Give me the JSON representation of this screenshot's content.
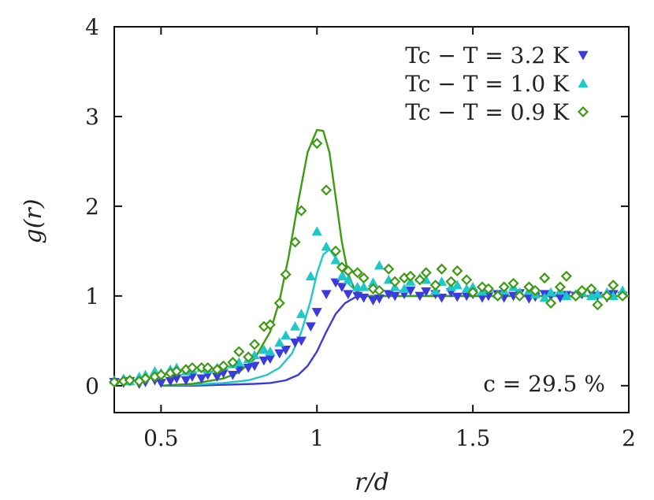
{
  "chart_data": {
    "type": "scatter",
    "xlabel": "r/d",
    "ylabel": "g(r)",
    "xlim": [
      0.35,
      2.0
    ],
    "ylim": [
      -0.3,
      4.0
    ],
    "xticks": [
      0.5,
      1,
      1.5,
      2
    ],
    "xtick_labels": [
      "0.5",
      "1",
      "1.5",
      "2"
    ],
    "yticks": [
      0,
      1,
      2,
      3,
      4
    ],
    "ytick_labels": [
      "0",
      "1",
      "2",
      "3",
      "4"
    ],
    "grid": false,
    "legend_position": "top-right",
    "annotation": "c = 29.5 %",
    "series": [
      {
        "name": "Tc − T = 3.2 K",
        "color": "#3a3adf",
        "marker": "triangle-down",
        "points": [
          [
            0.35,
            0.04
          ],
          [
            0.38,
            0.03
          ],
          [
            0.4,
            0.05
          ],
          [
            0.43,
            0.02
          ],
          [
            0.45,
            0.04
          ],
          [
            0.48,
            0.06
          ],
          [
            0.5,
            0.03
          ],
          [
            0.53,
            0.05
          ],
          [
            0.55,
            0.08
          ],
          [
            0.58,
            0.06
          ],
          [
            0.6,
            0.1
          ],
          [
            0.63,
            0.08
          ],
          [
            0.65,
            0.12
          ],
          [
            0.68,
            0.1
          ],
          [
            0.7,
            0.14
          ],
          [
            0.73,
            0.12
          ],
          [
            0.75,
            0.18
          ],
          [
            0.78,
            0.2
          ],
          [
            0.8,
            0.22
          ],
          [
            0.83,
            0.28
          ],
          [
            0.85,
            0.3
          ],
          [
            0.88,
            0.36
          ],
          [
            0.9,
            0.4
          ],
          [
            0.93,
            0.48
          ],
          [
            0.95,
            0.5
          ],
          [
            0.98,
            0.66
          ],
          [
            1.0,
            0.82
          ],
          [
            1.03,
            1.02
          ],
          [
            1.06,
            1.15
          ],
          [
            1.08,
            1.1
          ],
          [
            1.1,
            1.02
          ],
          [
            1.13,
            1.0
          ],
          [
            1.15,
            0.98
          ],
          [
            1.18,
            0.95
          ],
          [
            1.2,
            0.97
          ],
          [
            1.23,
            1.02
          ],
          [
            1.25,
            1.0
          ],
          [
            1.28,
            1.02
          ],
          [
            1.3,
            1.06
          ],
          [
            1.33,
            1.0
          ],
          [
            1.35,
            1.05
          ],
          [
            1.38,
            1.02
          ],
          [
            1.4,
            0.98
          ],
          [
            1.43,
            1.04
          ],
          [
            1.45,
            0.99
          ],
          [
            1.48,
            1.0
          ],
          [
            1.5,
            1.02
          ],
          [
            1.53,
            0.98
          ],
          [
            1.55,
            1.0
          ],
          [
            1.58,
            1.02
          ],
          [
            1.6,
            0.98
          ],
          [
            1.63,
            1.0
          ],
          [
            1.65,
            1.03
          ],
          [
            1.68,
            0.97
          ],
          [
            1.7,
            0.99
          ],
          [
            1.73,
            1.02
          ],
          [
            1.75,
            1.0
          ],
          [
            1.78,
            0.98
          ],
          [
            1.8,
            1.01
          ],
          [
            1.83,
            1.0
          ],
          [
            1.85,
            1.02
          ],
          [
            1.88,
            1.04
          ],
          [
            1.9,
            1.0
          ],
          [
            1.93,
            0.98
          ],
          [
            1.95,
            1.02
          ],
          [
            1.98,
            1.0
          ]
        ],
        "curve": [
          [
            0.5,
            0.0
          ],
          [
            0.6,
            0.0
          ],
          [
            0.7,
            0.01
          ],
          [
            0.8,
            0.02
          ],
          [
            0.85,
            0.03
          ],
          [
            0.9,
            0.06
          ],
          [
            0.94,
            0.12
          ],
          [
            0.97,
            0.22
          ],
          [
            1.0,
            0.38
          ],
          [
            1.03,
            0.6
          ],
          [
            1.06,
            0.8
          ],
          [
            1.09,
            0.92
          ],
          [
            1.12,
            0.98
          ],
          [
            1.15,
            1.0
          ],
          [
            1.2,
            1.0
          ],
          [
            1.4,
            1.0
          ],
          [
            1.6,
            1.0
          ],
          [
            1.8,
            1.0
          ],
          [
            2.0,
            1.0
          ]
        ]
      },
      {
        "name": "Tc − T = 1.0 K",
        "color": "#1fc8c8",
        "marker": "triangle-up",
        "points": [
          [
            0.35,
            0.06
          ],
          [
            0.38,
            0.08
          ],
          [
            0.4,
            0.05
          ],
          [
            0.43,
            0.1
          ],
          [
            0.45,
            0.12
          ],
          [
            0.48,
            0.16
          ],
          [
            0.5,
            0.14
          ],
          [
            0.53,
            0.18
          ],
          [
            0.55,
            0.2
          ],
          [
            0.58,
            0.16
          ],
          [
            0.6,
            0.18
          ],
          [
            0.63,
            0.2
          ],
          [
            0.65,
            0.18
          ],
          [
            0.68,
            0.2
          ],
          [
            0.7,
            0.22
          ],
          [
            0.73,
            0.24
          ],
          [
            0.75,
            0.26
          ],
          [
            0.78,
            0.3
          ],
          [
            0.8,
            0.34
          ],
          [
            0.83,
            0.4
          ],
          [
            0.85,
            0.38
          ],
          [
            0.88,
            0.48
          ],
          [
            0.9,
            0.56
          ],
          [
            0.93,
            0.66
          ],
          [
            0.95,
            0.8
          ],
          [
            0.98,
            1.22
          ],
          [
            1.0,
            1.72
          ],
          [
            1.03,
            1.55
          ],
          [
            1.06,
            1.4
          ],
          [
            1.08,
            1.22
          ],
          [
            1.1,
            1.18
          ],
          [
            1.13,
            1.1
          ],
          [
            1.15,
            1.1
          ],
          [
            1.18,
            1.15
          ],
          [
            1.2,
            1.34
          ],
          [
            1.23,
            1.18
          ],
          [
            1.25,
            1.1
          ],
          [
            1.28,
            1.08
          ],
          [
            1.3,
            1.16
          ],
          [
            1.33,
            1.2
          ],
          [
            1.35,
            1.18
          ],
          [
            1.38,
            1.06
          ],
          [
            1.4,
            1.16
          ],
          [
            1.43,
            1.1
          ],
          [
            1.45,
            1.12
          ],
          [
            1.48,
            1.08
          ],
          [
            1.5,
            1.1
          ],
          [
            1.53,
            1.05
          ],
          [
            1.55,
            1.08
          ],
          [
            1.58,
            1.02
          ],
          [
            1.6,
            1.06
          ],
          [
            1.63,
            1.1
          ],
          [
            1.65,
            1.04
          ],
          [
            1.68,
            1.06
          ],
          [
            1.7,
            1.02
          ],
          [
            1.73,
            0.98
          ],
          [
            1.75,
            1.04
          ],
          [
            1.78,
            1.06
          ],
          [
            1.8,
            1.0
          ],
          [
            1.83,
            1.02
          ],
          [
            1.85,
            1.04
          ],
          [
            1.88,
            1.0
          ],
          [
            1.9,
            1.02
          ],
          [
            1.93,
            1.04
          ],
          [
            1.95,
            1.0
          ],
          [
            1.98,
            1.06
          ]
        ],
        "curve": [
          [
            0.5,
            0.0
          ],
          [
            0.6,
            0.01
          ],
          [
            0.7,
            0.03
          ],
          [
            0.78,
            0.06
          ],
          [
            0.84,
            0.12
          ],
          [
            0.88,
            0.2
          ],
          [
            0.92,
            0.36
          ],
          [
            0.95,
            0.6
          ],
          [
            0.98,
            0.95
          ],
          [
            1.0,
            1.25
          ],
          [
            1.02,
            1.46
          ],
          [
            1.04,
            1.52
          ],
          [
            1.06,
            1.42
          ],
          [
            1.08,
            1.28
          ],
          [
            1.1,
            1.14
          ],
          [
            1.13,
            1.04
          ],
          [
            1.16,
            1.0
          ],
          [
            1.2,
            1.0
          ],
          [
            1.4,
            1.0
          ],
          [
            1.6,
            1.0
          ],
          [
            1.8,
            1.0
          ],
          [
            2.0,
            1.0
          ]
        ]
      },
      {
        "name": "Tc − T = 0.9 K",
        "color": "#3e9a12",
        "marker": "diamond",
        "points": [
          [
            0.35,
            0.04
          ],
          [
            0.38,
            0.05
          ],
          [
            0.4,
            0.06
          ],
          [
            0.43,
            0.05
          ],
          [
            0.45,
            0.08
          ],
          [
            0.48,
            0.1
          ],
          [
            0.5,
            0.12
          ],
          [
            0.53,
            0.14
          ],
          [
            0.55,
            0.16
          ],
          [
            0.58,
            0.18
          ],
          [
            0.6,
            0.2
          ],
          [
            0.63,
            0.2
          ],
          [
            0.65,
            0.2
          ],
          [
            0.68,
            0.18
          ],
          [
            0.7,
            0.22
          ],
          [
            0.73,
            0.26
          ],
          [
            0.75,
            0.38
          ],
          [
            0.78,
            0.32
          ],
          [
            0.8,
            0.46
          ],
          [
            0.83,
            0.66
          ],
          [
            0.85,
            0.68
          ],
          [
            0.88,
            0.92
          ],
          [
            0.9,
            1.24
          ],
          [
            0.93,
            1.6
          ],
          [
            0.95,
            1.95
          ],
          [
            1.0,
            2.7
          ],
          [
            1.03,
            2.18
          ],
          [
            1.06,
            1.5
          ],
          [
            1.08,
            1.32
          ],
          [
            1.1,
            1.28
          ],
          [
            1.13,
            1.26
          ],
          [
            1.15,
            1.2
          ],
          [
            1.18,
            1.08
          ],
          [
            1.2,
            1.06
          ],
          [
            1.23,
            1.3
          ],
          [
            1.25,
            1.16
          ],
          [
            1.28,
            1.2
          ],
          [
            1.3,
            1.22
          ],
          [
            1.33,
            1.18
          ],
          [
            1.35,
            1.26
          ],
          [
            1.38,
            1.12
          ],
          [
            1.4,
            1.3
          ],
          [
            1.43,
            1.16
          ],
          [
            1.45,
            1.28
          ],
          [
            1.48,
            1.18
          ],
          [
            1.5,
            1.04
          ],
          [
            1.53,
            1.1
          ],
          [
            1.55,
            1.08
          ],
          [
            1.58,
            1.0
          ],
          [
            1.6,
            1.1
          ],
          [
            1.63,
            1.14
          ],
          [
            1.65,
            1.0
          ],
          [
            1.68,
            1.1
          ],
          [
            1.7,
            1.06
          ],
          [
            1.73,
            1.2
          ],
          [
            1.75,
            0.92
          ],
          [
            1.78,
            1.1
          ],
          [
            1.8,
            1.22
          ],
          [
            1.83,
            1.0
          ],
          [
            1.85,
            1.06
          ],
          [
            1.88,
            1.08
          ],
          [
            1.9,
            0.9
          ],
          [
            1.93,
            1.0
          ],
          [
            1.95,
            1.12
          ],
          [
            1.98,
            1.0
          ]
        ],
        "curve": [
          [
            0.5,
            0.0
          ],
          [
            0.6,
            0.02
          ],
          [
            0.7,
            0.08
          ],
          [
            0.75,
            0.15
          ],
          [
            0.8,
            0.3
          ],
          [
            0.85,
            0.6
          ],
          [
            0.88,
            0.95
          ],
          [
            0.91,
            1.45
          ],
          [
            0.94,
            2.05
          ],
          [
            0.97,
            2.6
          ],
          [
            1.0,
            2.85
          ],
          [
            1.02,
            2.84
          ],
          [
            1.04,
            2.6
          ],
          [
            1.06,
            2.1
          ],
          [
            1.08,
            1.6
          ],
          [
            1.1,
            1.25
          ],
          [
            1.12,
            1.08
          ],
          [
            1.15,
            1.0
          ],
          [
            1.2,
            1.0
          ],
          [
            1.4,
            1.0
          ],
          [
            1.6,
            1.0
          ],
          [
            1.8,
            1.0
          ],
          [
            2.0,
            1.0
          ]
        ]
      }
    ]
  }
}
